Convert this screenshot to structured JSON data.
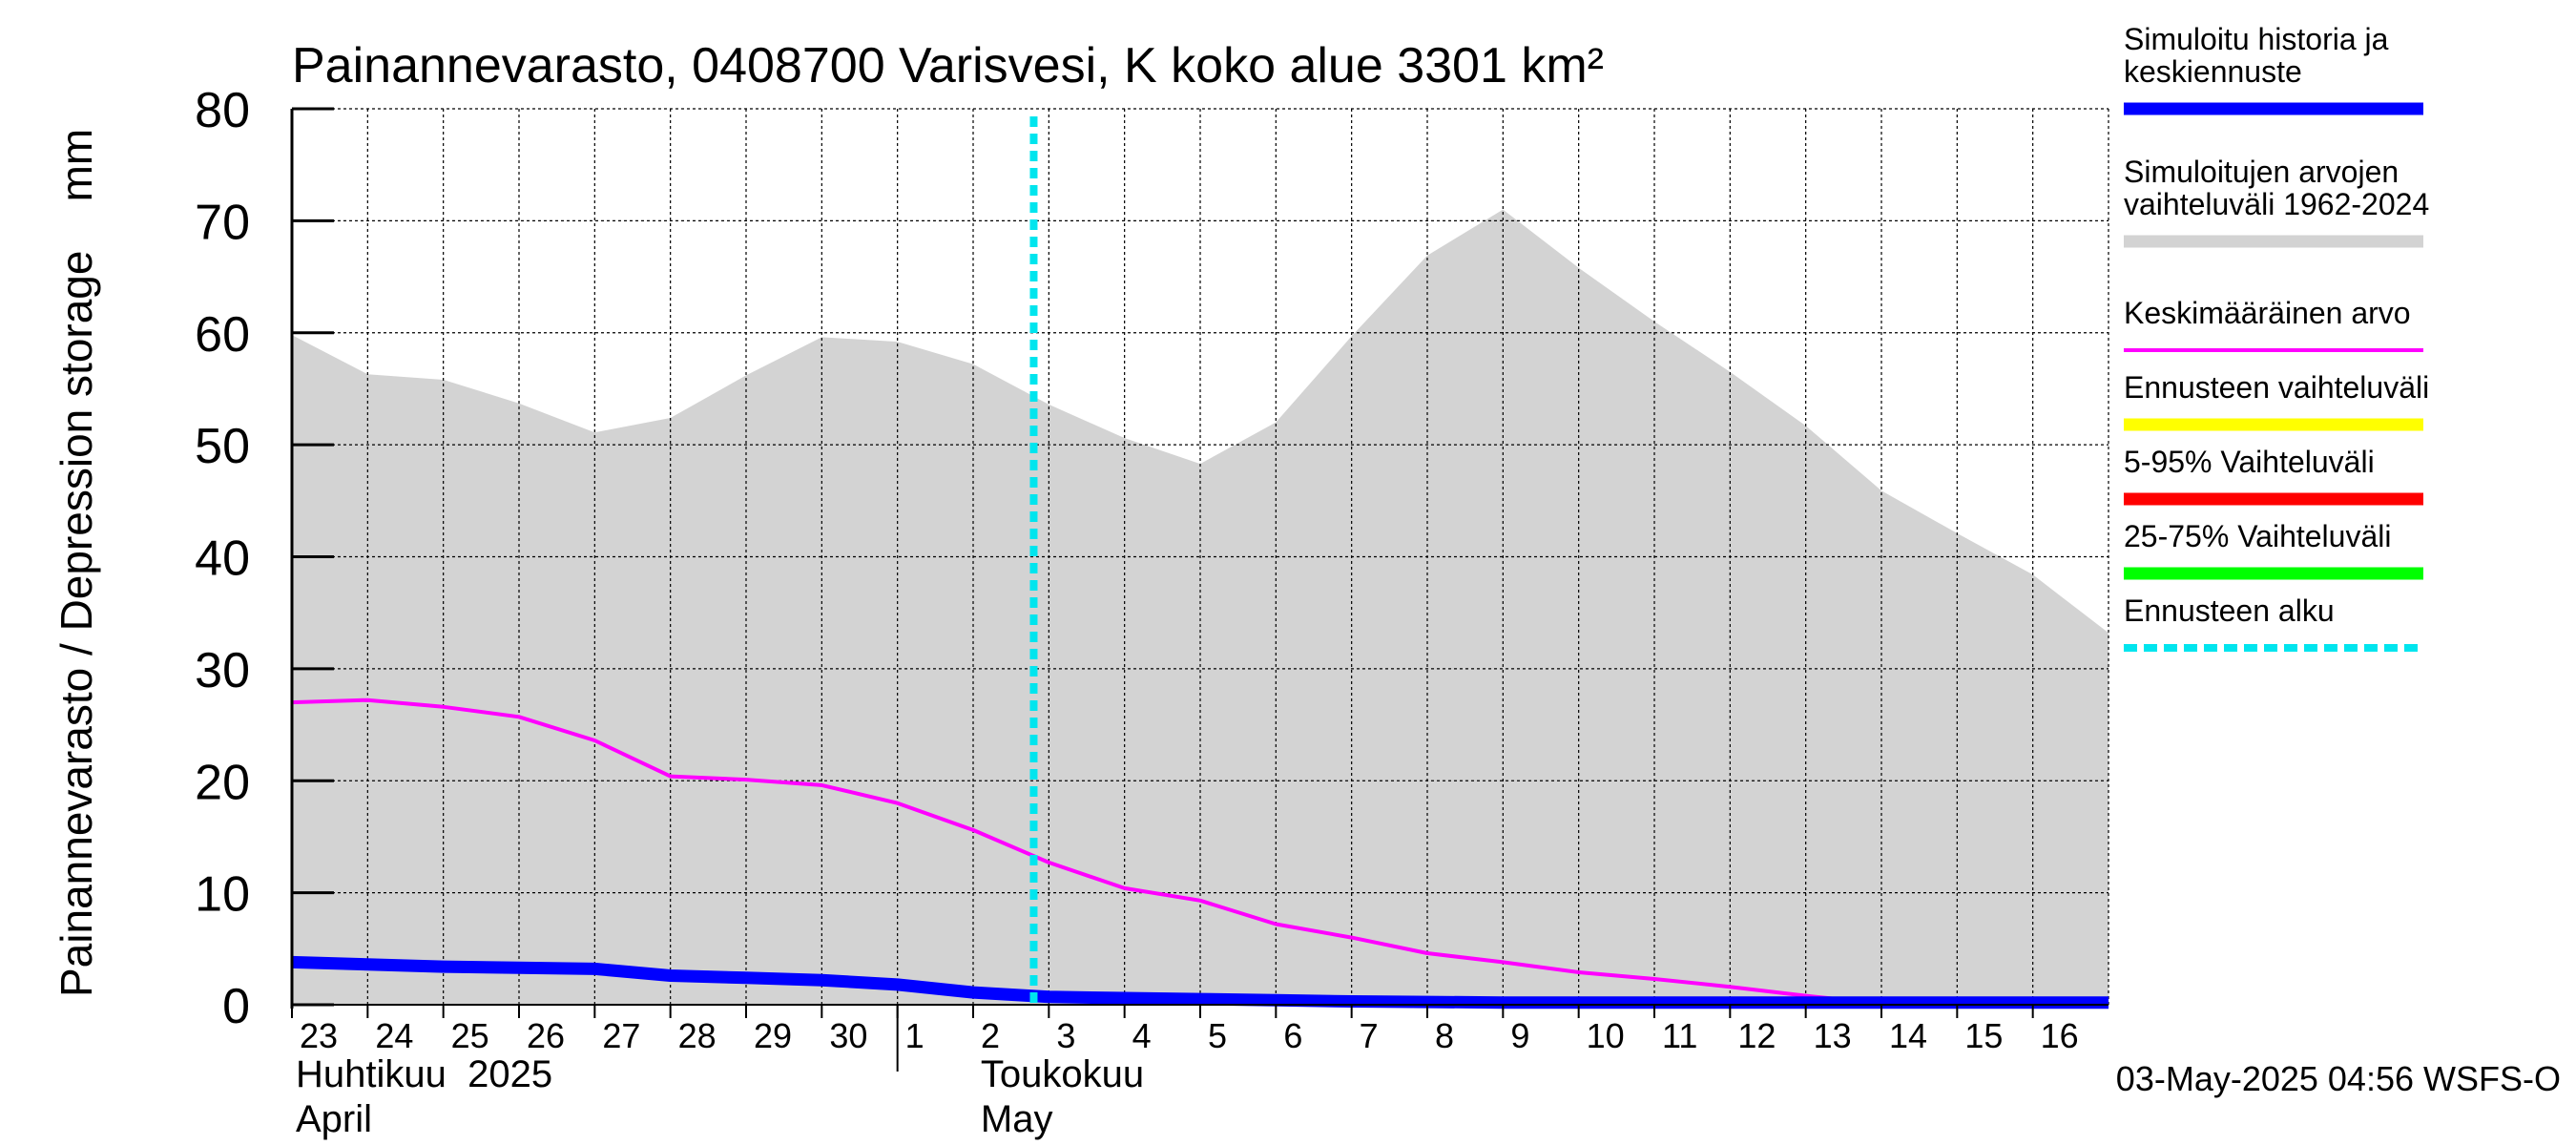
{
  "chart_data": {
    "type": "area",
    "title": "Painannevarasto, 0408700 Varisvesi, K koko alue 3301 km²",
    "ylabel": "Painannevarasto / Depression storage    mm",
    "ylim": [
      0,
      80
    ],
    "yticks": [
      "0",
      "10",
      "20",
      "30",
      "40",
      "50",
      "60",
      "70",
      "80"
    ],
    "xlim": [
      "2025-04-23",
      "2025-05-17"
    ],
    "x_tick_labels": [
      "23",
      "24",
      "25",
      "26",
      "27",
      "28",
      "29",
      "30",
      "1",
      "2",
      "3",
      "4",
      "5",
      "6",
      "7",
      "8",
      "9",
      "10",
      "11",
      "12",
      "13",
      "14",
      "15",
      "16"
    ],
    "month_labels": [
      {
        "fi": "Huhtikuu  2025",
        "en": "April"
      },
      {
        "fi": "Toukokuu",
        "en": "May"
      }
    ],
    "grid": true,
    "legend_position": "right",
    "forecast_start": "2025-05-03",
    "x": [
      "2025-04-23",
      "2025-04-24",
      "2025-04-25",
      "2025-04-26",
      "2025-04-27",
      "2025-04-28",
      "2025-04-29",
      "2025-04-30",
      "2025-05-01",
      "2025-05-02",
      "2025-05-03",
      "2025-05-04",
      "2025-05-05",
      "2025-05-06",
      "2025-05-07",
      "2025-05-08",
      "2025-05-09",
      "2025-05-10",
      "2025-05-11",
      "2025-05-12",
      "2025-05-13",
      "2025-05-14",
      "2025-05-15",
      "2025-05-16",
      "2025-05-17"
    ],
    "series": [
      {
        "name": "Simuloitujen arvojen vaihteluväli 1962-2024",
        "kind": "band",
        "upper": [
          59.8,
          56.3,
          55.8,
          53.7,
          51.1,
          52.4,
          56.2,
          59.6,
          59.2,
          57.2,
          53.6,
          50.6,
          48.3,
          52.0,
          59.7,
          66.9,
          71.0,
          65.8,
          61.0,
          56.5,
          51.7,
          45.9,
          42.1,
          38.4,
          33.2
        ],
        "lower": [
          0,
          0,
          0,
          0,
          0,
          0,
          0,
          0,
          0,
          0,
          0,
          0,
          0,
          0,
          0,
          0,
          0,
          0,
          0,
          0,
          0,
          0,
          0,
          0,
          0
        ]
      },
      {
        "name": "Keskimääräinen arvo",
        "kind": "line",
        "values": [
          27.0,
          27.2,
          26.6,
          25.7,
          23.6,
          20.4,
          20.1,
          19.6,
          18.0,
          15.6,
          12.7,
          10.4,
          9.3,
          7.2,
          6.0,
          4.6,
          3.8,
          2.9,
          2.3,
          1.6,
          0.8,
          0.1,
          0.0,
          0.0,
          0.0
        ]
      },
      {
        "name": "Simuloitu historia ja keskiennuste",
        "kind": "line",
        "values": [
          3.8,
          3.6,
          3.4,
          3.3,
          3.2,
          2.6,
          2.4,
          2.2,
          1.8,
          1.1,
          0.7,
          0.6,
          0.5,
          0.4,
          0.3,
          0.25,
          0.2,
          0.2,
          0.2,
          0.2,
          0.2,
          0.2,
          0.2,
          0.2,
          0.2
        ]
      }
    ],
    "legend": [
      {
        "label": "Simuloitu historia ja keskiennuste",
        "color": "#0000ff",
        "style": "thick"
      },
      {
        "label": "Simuloitujen arvojen vaihteluväli 1962-2024",
        "color": "#d3d3d3",
        "style": "solid"
      },
      {
        "label": "Keskimääräinen arvo",
        "color": "#ff00ff",
        "style": "thin"
      },
      {
        "label": "Ennusteen vaihteluväli",
        "color": "#ffff00",
        "style": "solid"
      },
      {
        "label": "5-95% Vaihteluväli",
        "color": "#ff0000",
        "style": "solid"
      },
      {
        "label": "25-75% Vaihteluväli",
        "color": "#00ff00",
        "style": "solid"
      },
      {
        "label": "Ennusteen alku",
        "color": "#00e5ee",
        "style": "dashed"
      }
    ],
    "colors": {
      "band": "#d3d3d3",
      "mean": "#ff00ff",
      "history": "#0000ff",
      "forecast_start": "#00e5ee"
    },
    "footer": "03-May-2025 04:56 WSFS-O"
  }
}
